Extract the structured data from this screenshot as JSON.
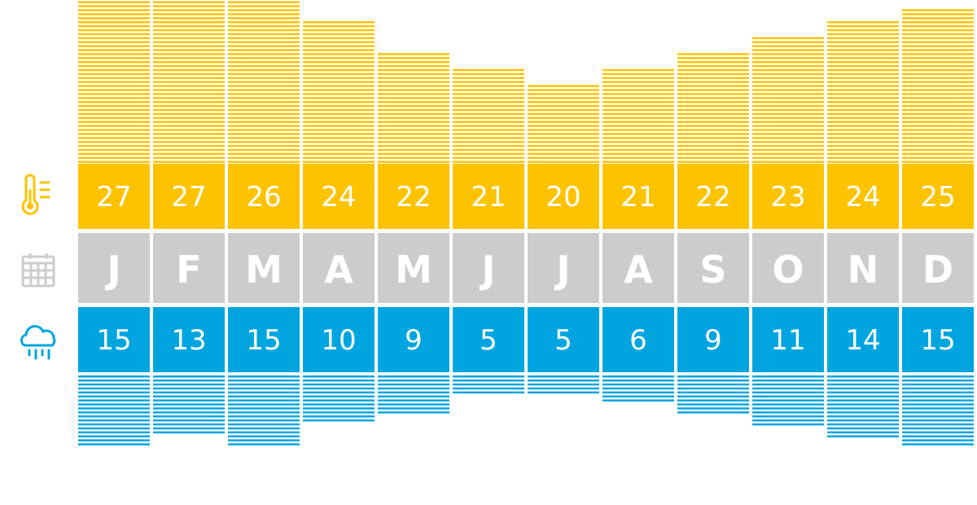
{
  "chart_data": {
    "type": "table",
    "categories": [
      "J",
      "F",
      "M",
      "A",
      "M",
      "J",
      "J",
      "A",
      "S",
      "O",
      "N",
      "D"
    ],
    "series": [
      {
        "values": [
          27,
          27,
          26,
          24,
          22,
          21,
          20,
          21,
          22,
          23,
          24,
          25
        ]
      },
      {
        "values": [
          15,
          13,
          15,
          10,
          9,
          5,
          5,
          6,
          9,
          11,
          14,
          15
        ]
      }
    ],
    "grid": false
  },
  "icons": {
    "temperature": "thermometer-icon",
    "months": "calendar-icon",
    "rain": "rain-cloud-icon"
  },
  "colors": {
    "temperature": "#fdc300",
    "month": "#cccccc",
    "rain": "#00a5df",
    "value_text": "#ffffff"
  }
}
